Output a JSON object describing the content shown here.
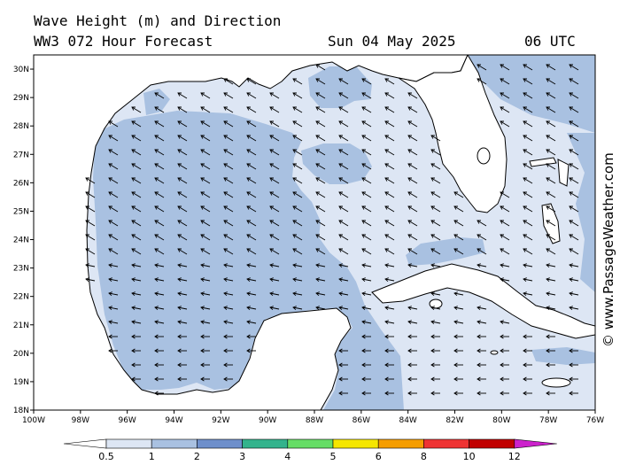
{
  "header": {
    "line1": "Wave Height (m) and Direction",
    "model": "WW3 072 Hour Forecast",
    "date": "Sun 04 May 2025",
    "time": "06 UTC"
  },
  "credit": "© www.PassageWeather.com",
  "map": {
    "lon_ticks": [
      "100W",
      "98W",
      "96W",
      "94W",
      "92W",
      "90W",
      "88W",
      "86W",
      "84W",
      "82W",
      "80W",
      "78W",
      "76W"
    ],
    "lat_ticks": [
      "30N",
      "29N",
      "28N",
      "27N",
      "26N",
      "25N",
      "24N",
      "23N",
      "22N",
      "21N",
      "20N",
      "19N",
      "18N"
    ],
    "lon_range": [
      -100,
      -76
    ],
    "lat_range": [
      18,
      30.5
    ],
    "colors": {
      "ocean_light": "#dde6f4",
      "ocean_mid": "#a9c1e1",
      "land": "#ffffff",
      "coast": "#000000"
    },
    "arrow_direction": "northwest"
  },
  "colorbar": {
    "labels": [
      "0.5",
      "1",
      "2",
      "3",
      "4",
      "5",
      "6",
      "8",
      "10",
      "12"
    ],
    "colors": [
      "#dde6f4",
      "#a9c1e1",
      "#6e8fcb",
      "#33b38c",
      "#66dd66",
      "#f5e600",
      "#f59d00",
      "#ee3333",
      "#c10000",
      "#cc22cc"
    ]
  }
}
